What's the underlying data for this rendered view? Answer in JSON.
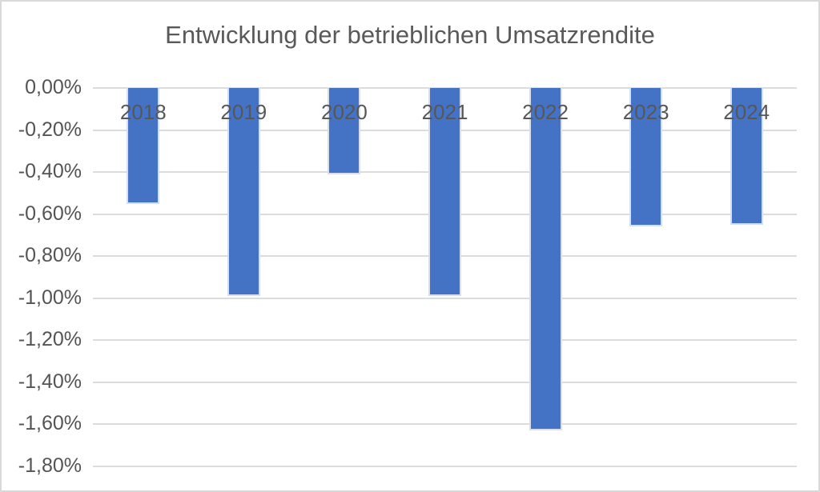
{
  "title": "Entwicklung der betrieblichen Umsatzrendite",
  "chart_data": {
    "type": "bar",
    "title": "Entwicklung der betrieblichen Umsatzrendite",
    "categories": [
      "2018",
      "2019",
      "2020",
      "2021",
      "2022",
      "2023",
      "2024"
    ],
    "values": [
      -0.55,
      -0.99,
      -0.41,
      -0.99,
      -1.63,
      -0.66,
      -0.65
    ],
    "xlabel": "",
    "ylabel": "",
    "ylim": [
      -1.8,
      0.0
    ],
    "ytick_step": 0.2,
    "ytick_labels": [
      "0,00%",
      "-0,20%",
      "-0,40%",
      "-0,60%",
      "-0,80%",
      "-1,00%",
      "-1,20%",
      "-1,40%",
      "-1,60%",
      "-1,80%"
    ],
    "value_unit": "percent",
    "decimal_style": "german-comma",
    "grid": true,
    "legend": false,
    "bar_color": "#4472c4",
    "bar_border_color": "#d6dff2"
  },
  "colors": {
    "background": "#ffffff",
    "frame_border": "#d9d9d9",
    "gridline": "#dcdcdc",
    "title_text": "#595959",
    "axis_text": "#545454"
  }
}
